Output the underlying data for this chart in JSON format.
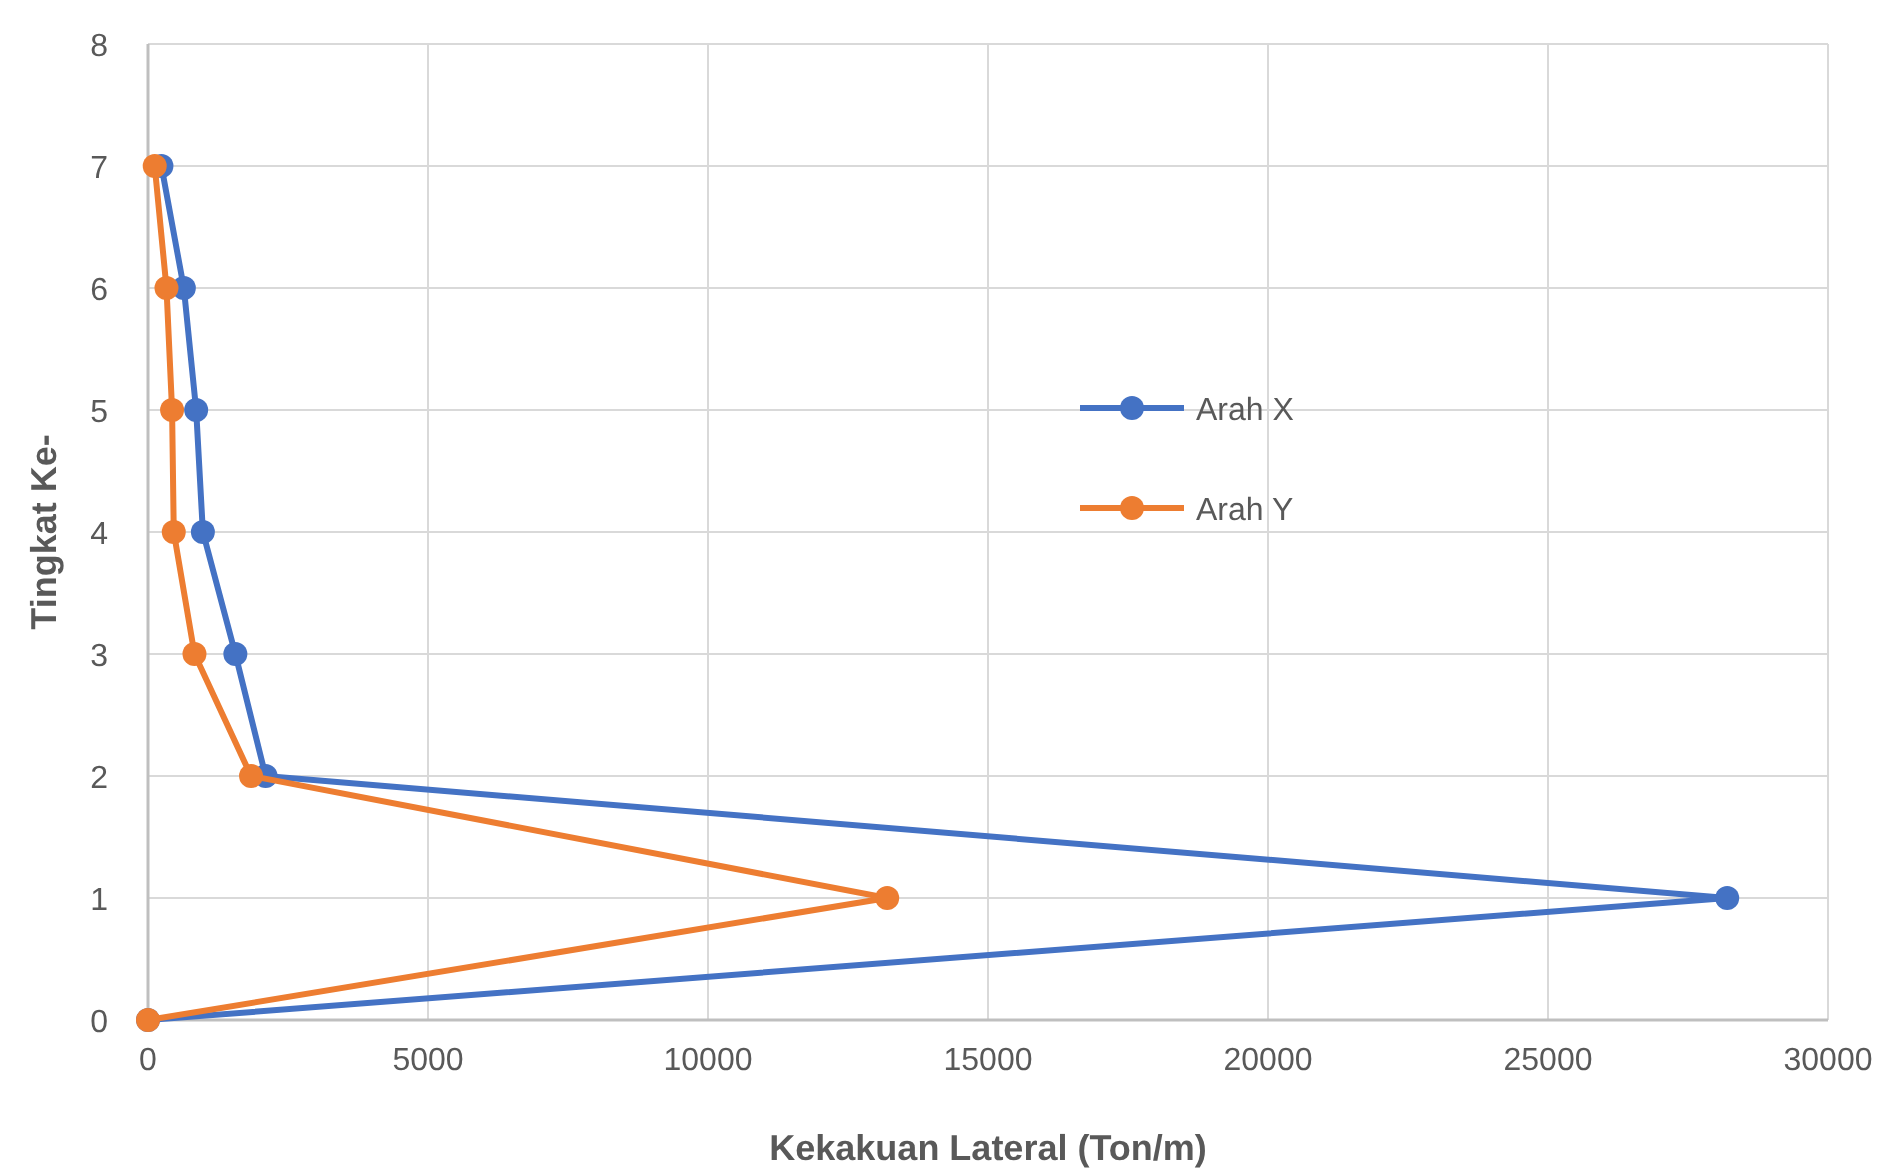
{
  "chart_data": {
    "type": "line",
    "xlabel": "Kekakuan Lateral (Ton/m)",
    "ylabel": "Tingkat Ke-",
    "xlim": [
      0,
      30000
    ],
    "xticks": [
      0,
      5000,
      10000,
      15000,
      20000,
      25000,
      30000
    ],
    "ylim": [
      0,
      8
    ],
    "yticks": [
      0,
      1,
      2,
      3,
      4,
      5,
      6,
      7,
      8
    ],
    "grid": true,
    "legend": "right",
    "marker": "circle",
    "line_style": "solid",
    "series": [
      {
        "name": "Arah X",
        "color": "#4472c4",
        "x": [
          0,
          28200,
          2100,
          1560,
          980,
          860,
          640,
          240
        ],
        "values": [
          0,
          1,
          2,
          3,
          4,
          5,
          6,
          7
        ]
      },
      {
        "name": "Arah Y",
        "color": "#ed7d31",
        "x": [
          0,
          13200,
          1840,
          830,
          460,
          430,
          330,
          120
        ],
        "values": [
          0,
          1,
          2,
          3,
          4,
          5,
          6,
          7
        ]
      }
    ]
  }
}
